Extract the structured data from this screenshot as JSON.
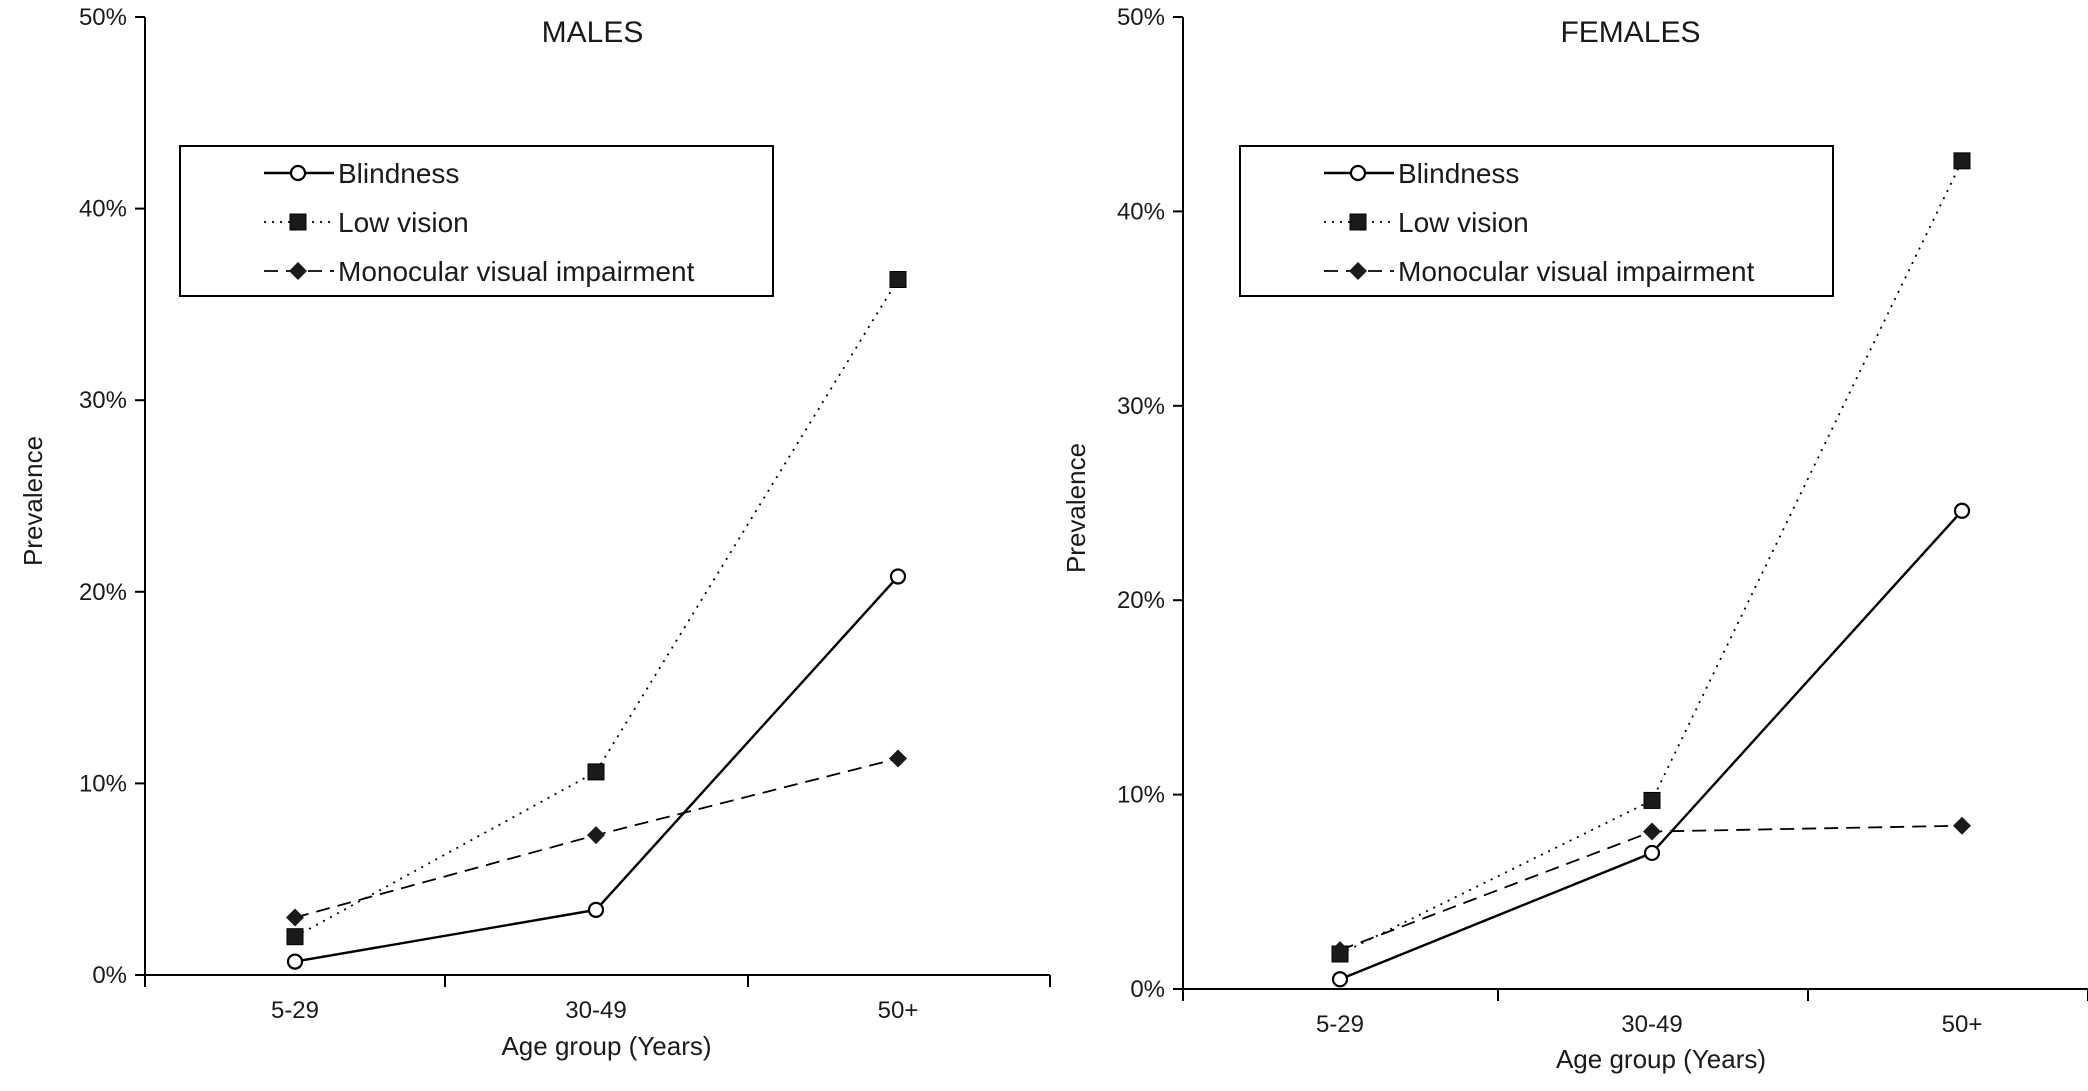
{
  "chart_data": [
    {
      "type": "line",
      "title": "MALES",
      "xlabel": "Age group (Years)",
      "ylabel": "Prevalence",
      "categories": [
        "5-29",
        "30-49",
        "50+"
      ],
      "ylim": [
        0,
        50
      ],
      "yticks": [
        "0%",
        "10%",
        "20%",
        "30%",
        "40%",
        "50%"
      ],
      "grid": false,
      "legend_position": "top-left",
      "series": [
        {
          "name": "Blindness",
          "values": [
            0.7,
            3.4,
            20.8
          ],
          "marker": "open-circle",
          "line": "solid"
        },
        {
          "name": "Low vision",
          "values": [
            2.0,
            10.6,
            36.3
          ],
          "marker": "filled-square",
          "line": "dotted"
        },
        {
          "name": "Monocular visual impairment",
          "values": [
            3.0,
            7.3,
            11.3
          ],
          "marker": "filled-diamond",
          "line": "dashed"
        }
      ]
    },
    {
      "type": "line",
      "title": "FEMALES",
      "xlabel": "Age group (Years)",
      "ylabel": "Prevalence",
      "categories": [
        "5-29",
        "30-49",
        "50+"
      ],
      "ylim": [
        0,
        50
      ],
      "yticks": [
        "0%",
        "10%",
        "20%",
        "30%",
        "40%",
        "50%"
      ],
      "grid": false,
      "legend_position": "top-left",
      "series": [
        {
          "name": "Blindness",
          "values": [
            0.5,
            7.0,
            24.6
          ],
          "marker": "open-circle",
          "line": "solid"
        },
        {
          "name": "Low vision",
          "values": [
            1.8,
            9.7,
            42.6
          ],
          "marker": "filled-square",
          "line": "dotted"
        },
        {
          "name": "Monocular visual impairment",
          "values": [
            2.0,
            8.1,
            8.4
          ],
          "marker": "filled-diamond",
          "line": "dashed"
        }
      ]
    }
  ]
}
